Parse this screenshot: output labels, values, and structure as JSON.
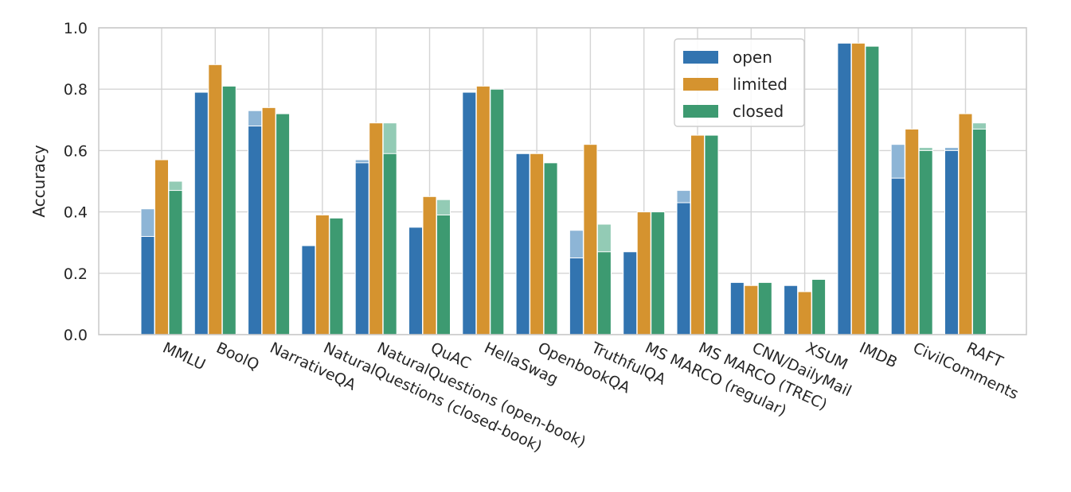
{
  "chart_data": {
    "type": "bar",
    "title": "",
    "xlabel": "",
    "ylabel": "Accuracy",
    "ylim": [
      0.0,
      1.0
    ],
    "yticks": [
      "0.0",
      "0.2",
      "0.4",
      "0.6",
      "0.8",
      "1.0"
    ],
    "grid": true,
    "legend_position": "top-right",
    "categories": [
      "MMLU",
      "BoolQ",
      "NarrativeQA",
      "NaturalQuestions (closed-book)",
      "NaturalQuestions (open-book)",
      "QuAC",
      "HellaSwag",
      "OpenbookQA",
      "TruthfulQA",
      "MS MARCO (regular)",
      "MS MARCO (TREC)",
      "CNN/DailyMail",
      "XSUM",
      "IMDB",
      "CivilComments",
      "RAFT"
    ],
    "series": [
      {
        "name": "open",
        "color": "#3274b0",
        "light_color": "#8db5d6",
        "values": [
          0.32,
          0.79,
          0.68,
          0.29,
          0.56,
          0.35,
          0.79,
          0.59,
          0.25,
          0.27,
          0.43,
          0.17,
          0.16,
          0.95,
          0.51,
          0.6
        ],
        "upper_values": [
          0.41,
          0.79,
          0.73,
          0.29,
          0.57,
          0.35,
          0.79,
          0.59,
          0.34,
          0.27,
          0.47,
          0.17,
          0.16,
          0.95,
          0.62,
          0.61
        ]
      },
      {
        "name": "limited",
        "color": "#d5932f",
        "light_color": "#e8c48d",
        "values": [
          0.57,
          0.88,
          0.74,
          0.39,
          0.69,
          0.45,
          0.81,
          0.59,
          0.62,
          0.4,
          0.65,
          0.16,
          0.14,
          0.95,
          0.67,
          0.72
        ],
        "upper_values": [
          0.57,
          0.88,
          0.74,
          0.39,
          0.69,
          0.45,
          0.81,
          0.59,
          0.62,
          0.4,
          0.65,
          0.16,
          0.14,
          0.95,
          0.67,
          0.72
        ]
      },
      {
        "name": "closed",
        "color": "#3d9a71",
        "light_color": "#93cbb5",
        "values": [
          0.47,
          0.81,
          0.72,
          0.38,
          0.59,
          0.39,
          0.8,
          0.56,
          0.27,
          0.4,
          0.65,
          0.17,
          0.18,
          0.94,
          0.6,
          0.67
        ],
        "upper_values": [
          0.5,
          0.81,
          0.72,
          0.38,
          0.69,
          0.44,
          0.8,
          0.56,
          0.36,
          0.4,
          0.65,
          0.17,
          0.18,
          0.94,
          0.61,
          0.69
        ]
      }
    ]
  }
}
